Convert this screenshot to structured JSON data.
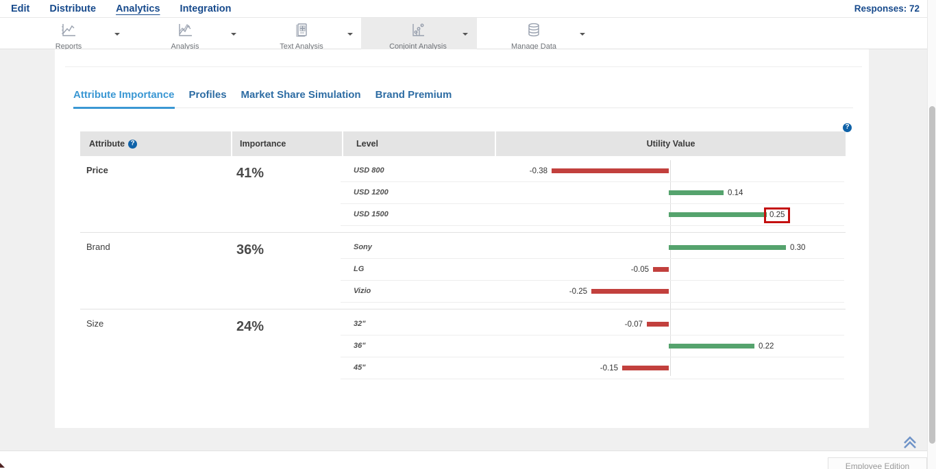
{
  "nav": {
    "items": [
      {
        "label": "Edit",
        "active": false
      },
      {
        "label": "Distribute",
        "active": false
      },
      {
        "label": "Analytics",
        "active": true
      },
      {
        "label": "Integration",
        "active": false
      }
    ],
    "responses_label": "Responses: 72"
  },
  "toolbar": {
    "items": [
      {
        "label": "Reports",
        "icon": "line-chart-icon",
        "active": false
      },
      {
        "label": "Analysis",
        "icon": "multi-line-chart-icon",
        "active": false
      },
      {
        "label": "Text Analysis",
        "icon": "document-grid-icon",
        "active": false
      },
      {
        "label": "Conjoint Analysis",
        "icon": "dot-plot-chart-icon",
        "active": true
      },
      {
        "label": "Manage Data",
        "icon": "database-icon",
        "active": false
      }
    ]
  },
  "tabs": [
    {
      "label": "Attribute Importance",
      "active": true
    },
    {
      "label": "Profiles",
      "active": false
    },
    {
      "label": "Market Share Simulation",
      "active": false
    },
    {
      "label": "Brand Premium",
      "active": false
    }
  ],
  "table": {
    "headers": {
      "attribute": "Attribute",
      "importance": "Importance",
      "level": "Level",
      "utility": "Utility Value"
    },
    "sections": [
      {
        "attribute": "Price",
        "importance": "41%",
        "levels": [
          {
            "label": "USD 800",
            "value": -0.38,
            "display": "-0.38",
            "annotated": false
          },
          {
            "label": "USD 1200",
            "value": 0.14,
            "display": "0.14",
            "annotated": false
          },
          {
            "label": "USD 1500",
            "value": 0.25,
            "display": "0.25",
            "annotated": true
          }
        ]
      },
      {
        "attribute": "Brand",
        "importance": "36%",
        "levels": [
          {
            "label": "Sony",
            "value": 0.3,
            "display": "0.30",
            "annotated": false
          },
          {
            "label": "LG",
            "value": -0.05,
            "display": "-0.05",
            "annotated": false
          },
          {
            "label": "Vizio",
            "value": -0.25,
            "display": "-0.25",
            "annotated": false
          }
        ]
      },
      {
        "attribute": "Size",
        "importance": "24%",
        "levels": [
          {
            "label": "32\"",
            "value": -0.07,
            "display": "-0.07",
            "annotated": false
          },
          {
            "label": "36\"",
            "value": 0.22,
            "display": "0.22",
            "annotated": false
          },
          {
            "label": "45\"",
            "value": -0.15,
            "display": "-0.15",
            "annotated": false
          }
        ]
      }
    ]
  },
  "footer": {
    "edition_label": "Employee Edition"
  },
  "colors": {
    "positive_bar": "#55a36d",
    "negative_bar": "#c2403d",
    "annotation_box": "#c40f0f",
    "nav_blue": "#174a8c",
    "tab_active_blue": "#3a97d3"
  }
}
